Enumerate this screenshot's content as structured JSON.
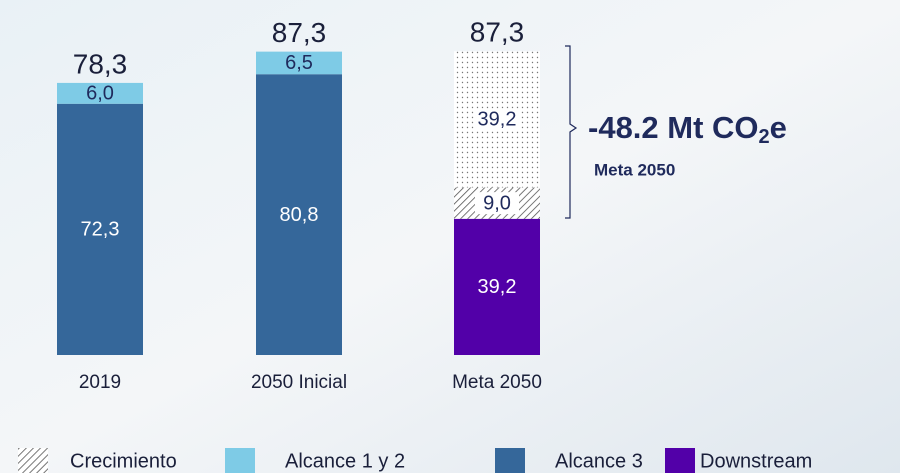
{
  "chart_data": {
    "type": "stacked_bar",
    "categories": [
      "2019",
      "2050 Inicial",
      "Meta 2050"
    ],
    "series": [
      {
        "name": "Alcance 3",
        "color": "#35679a",
        "values": [
          72.3,
          80.8,
          null
        ],
        "value_labels": [
          "72,3",
          "80,8",
          null
        ]
      },
      {
        "name": "Alcance 1 y 2",
        "color": "#7ecbe6",
        "values": [
          6.0,
          6.5,
          null
        ],
        "value_labels": [
          "6,0",
          "6,5",
          null
        ]
      },
      {
        "name": "Downstream",
        "color": "#5200a8",
        "values": [
          null,
          null,
          39.2
        ],
        "value_labels": [
          null,
          null,
          "39,2"
        ]
      },
      {
        "name": "Crecimiento",
        "color": "#555555",
        "pattern": "hatch",
        "values": [
          null,
          null,
          9.0
        ],
        "value_labels": [
          null,
          null,
          "9,0"
        ]
      },
      {
        "color": "#777777",
        "pattern": "dots",
        "values": [
          null,
          null,
          39.2
        ],
        "value_labels": [
          null,
          null,
          "39,2"
        ]
      }
    ],
    "totals": {
      "values": [
        78.3,
        87.3,
        87.3
      ],
      "value_labels": [
        "78,3",
        "87,3",
        "87,3"
      ]
    },
    "annotation": {
      "text": [
        "-48.2 Mt CO",
        "2",
        "e"
      ],
      "subtitle": "Meta 2050"
    }
  }
}
